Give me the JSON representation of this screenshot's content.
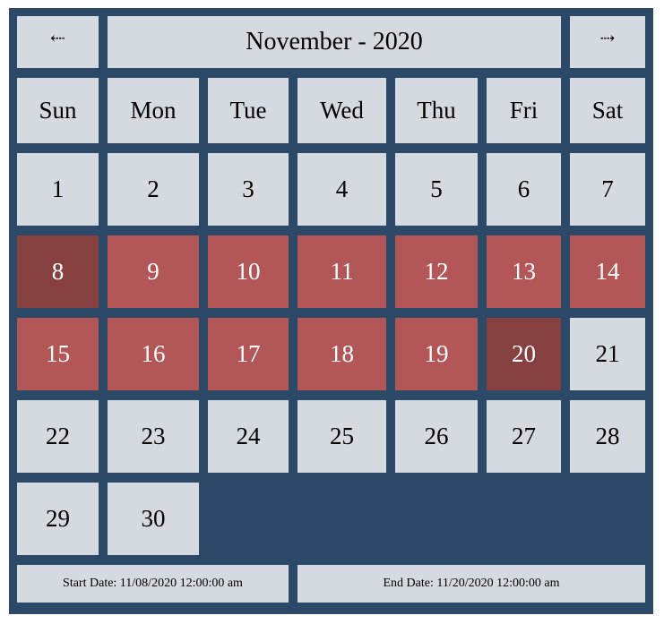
{
  "header": {
    "prev_icon": "⇠",
    "next_icon": "⇢",
    "month_year": "November - 2020"
  },
  "weekdays": [
    "Sun",
    "Mon",
    "Tue",
    "Wed",
    "Thu",
    "Fri",
    "Sat"
  ],
  "first_weekday_index": 0,
  "days_in_month": 30,
  "selection": {
    "start_day": 8,
    "end_day": 20
  },
  "footer": {
    "start_text": "Start Date: 11/08/2020 12:00:00 am",
    "end_text": "End Date: 11/20/2020 12:00:00 am"
  },
  "colors": {
    "frame": "#2c4a68",
    "cell": "#d5d9e0",
    "range": "#b25657",
    "edge": "#86403f"
  }
}
